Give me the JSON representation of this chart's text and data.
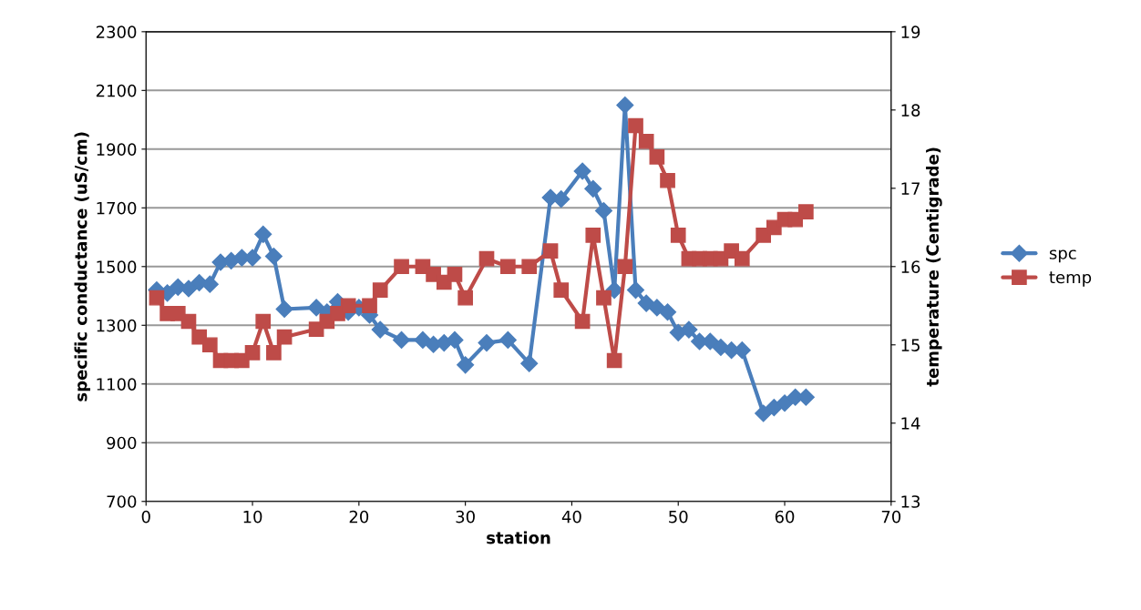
{
  "chart_data": {
    "type": "line",
    "xlabel": "station",
    "ylabel": "specific conductance (uS/cm)",
    "y2label": "temperature (Centigrade)",
    "xlim": [
      0,
      70
    ],
    "xticks": [
      0,
      10,
      20,
      30,
      40,
      50,
      60,
      70
    ],
    "ylim": [
      700,
      2300
    ],
    "yticks": [
      700,
      900,
      1100,
      1300,
      1500,
      1700,
      1900,
      2100,
      2300
    ],
    "y2lim": [
      13,
      19
    ],
    "y2ticks": [
      13,
      14,
      15,
      16,
      17,
      18,
      19
    ],
    "grid": "y",
    "legend": "right",
    "line_style": "solid",
    "series": [
      {
        "name": "spc",
        "color": "#4a7ebb",
        "marker": "diamond",
        "x": [
          1,
          2,
          3,
          4,
          5,
          6,
          7,
          8,
          9,
          10,
          11,
          12,
          13,
          16,
          17,
          18,
          19,
          20,
          21,
          22,
          24,
          26,
          27,
          28,
          29,
          30,
          32,
          34,
          36,
          38,
          39,
          41,
          42,
          43,
          44,
          45,
          46,
          47,
          48,
          49,
          50,
          51,
          52,
          53,
          54,
          55,
          56,
          58,
          59,
          60,
          61,
          62
        ],
        "values": [
          1420,
          1410,
          1430,
          1425,
          1445,
          1440,
          1515,
          1520,
          1530,
          1530,
          1610,
          1535,
          1355,
          1360,
          1345,
          1380,
          1345,
          1360,
          1335,
          1285,
          1250,
          1250,
          1235,
          1240,
          1250,
          1165,
          1240,
          1250,
          1170,
          1735,
          1730,
          1825,
          1765,
          1690,
          1420,
          2050,
          1420,
          1375,
          1360,
          1345,
          1275,
          1285,
          1245,
          1245,
          1225,
          1215,
          1215,
          1000,
          1020,
          1035,
          1055,
          1055
        ]
      },
      {
        "name": "temp",
        "color": "#be4b48",
        "marker": "square",
        "axis": "y2",
        "x": [
          1,
          2,
          3,
          4,
          5,
          6,
          7,
          8,
          9,
          10,
          11,
          12,
          13,
          16,
          17,
          18,
          19,
          21,
          22,
          24,
          26,
          27,
          28,
          29,
          30,
          32,
          34,
          36,
          38,
          39,
          41,
          42,
          43,
          44,
          45,
          46,
          47,
          48,
          49,
          50,
          51,
          52,
          53,
          54,
          55,
          56,
          58,
          59,
          60,
          61,
          62
        ],
        "values": [
          15.6,
          15.4,
          15.4,
          15.3,
          15.1,
          15.0,
          14.8,
          14.8,
          14.8,
          14.9,
          15.3,
          14.9,
          15.1,
          15.2,
          15.3,
          15.4,
          15.5,
          15.5,
          15.7,
          16.0,
          16.0,
          15.9,
          15.8,
          15.9,
          15.6,
          16.1,
          16.0,
          16.0,
          16.2,
          15.7,
          15.3,
          16.4,
          15.6,
          14.8,
          16.0,
          17.8,
          17.6,
          17.4,
          17.1,
          16.4,
          16.1,
          16.1,
          16.1,
          16.1,
          16.2,
          16.1,
          16.4,
          16.5,
          16.6,
          16.6,
          16.7
        ]
      }
    ]
  }
}
